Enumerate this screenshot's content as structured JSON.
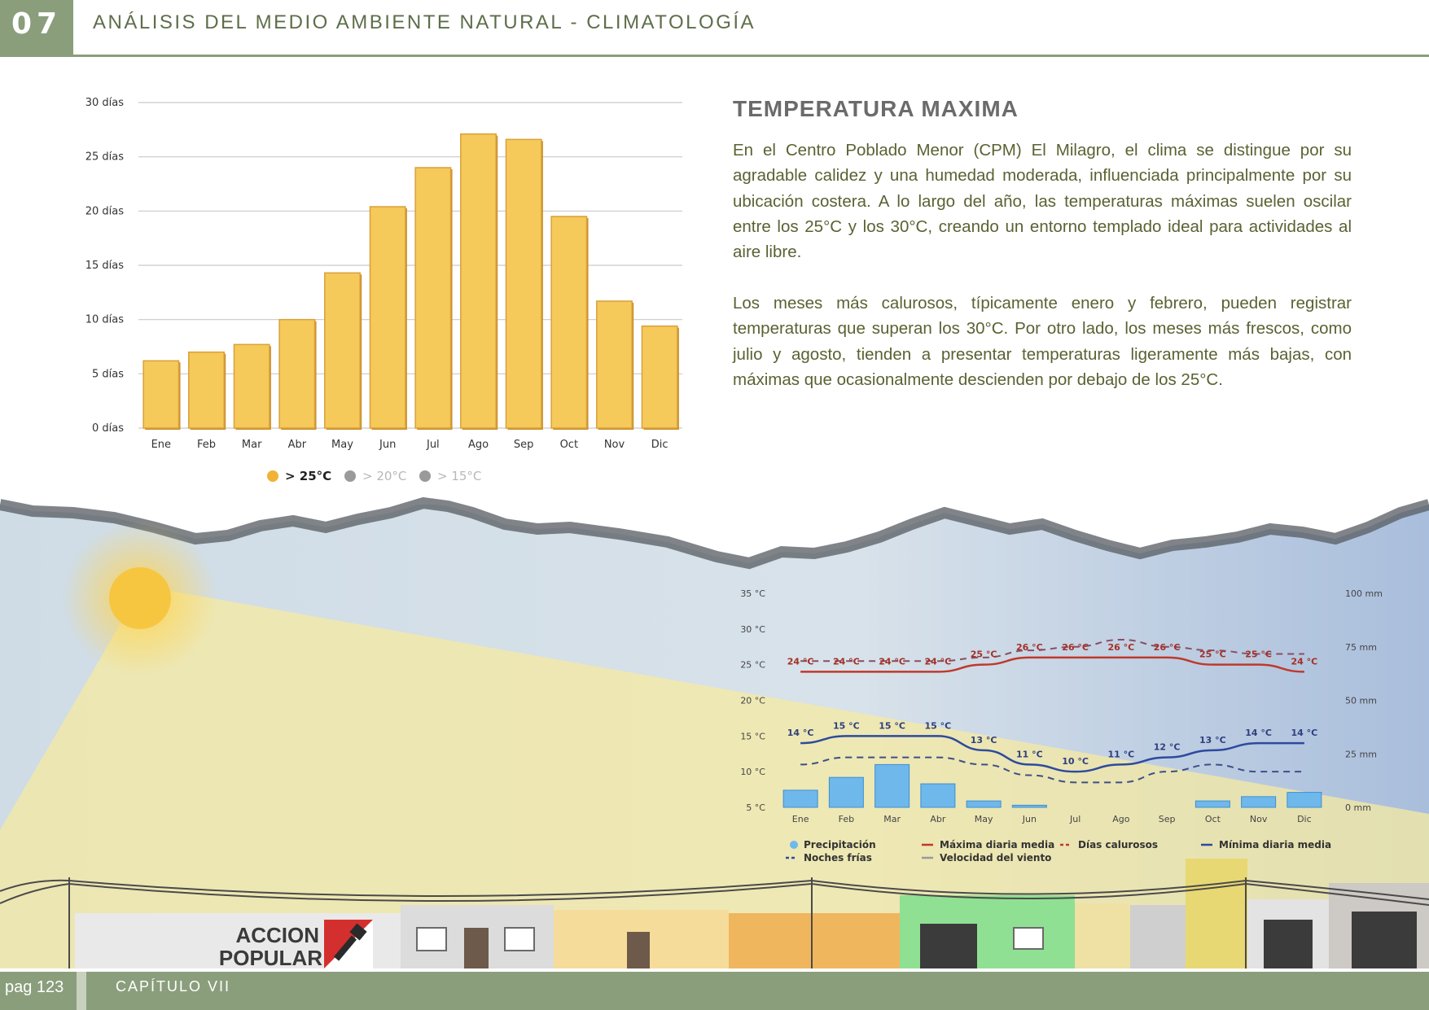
{
  "header": {
    "chapter_number": "07",
    "title": "ANÁLISIS DEL MEDIO AMBIENTE NATURAL - CLIMATOLOGÍA"
  },
  "section": {
    "title": "TEMPERATURA MAXIMA",
    "paragraphs": [
      "En el Centro Poblado Menor (CPM) El Milagro, el clima se distingue por su agradable calidez y una humedad moderada, influenciada principalmente por su ubicación costera. A lo largo del año, las temperaturas máximas suelen oscilar entre los 25°C y los 30°C, creando un entorno templado ideal para actividades al aire libre.",
      "Los meses más calurosos, típicamente enero y febrero, pueden registrar temperaturas que superan los 30°C. Por otro lado, los meses más frescos, como julio y agosto, tienden a presentar temperaturas ligeramente más bajas, con máximas que ocasionalmente descienden por debajo de los 25°C."
    ]
  },
  "footer": {
    "page": "pag 123",
    "chapter": "CAPÍTULO VII"
  },
  "logo_text": "ACCION POPULAR",
  "colors": {
    "accent": "#8a9e7c",
    "bar": "#f5c95a",
    "max_line": "#c0392b",
    "min_line": "#2e4a9e",
    "precip": "#6fb8ec"
  },
  "chart_data": [
    {
      "type": "bar",
      "categories": [
        "Ene",
        "Feb",
        "Mar",
        "Abr",
        "May",
        "Jun",
        "Jul",
        "Ago",
        "Sep",
        "Oct",
        "Nov",
        "Dic"
      ],
      "series": [
        {
          "name": "> 25°C",
          "values": [
            6.2,
            7,
            7.7,
            10,
            14.3,
            20.4,
            24,
            27.1,
            26.6,
            19.5,
            11.7,
            9.4
          ]
        }
      ],
      "y_ticks": [
        "0 días",
        "5 días",
        "10 días",
        "15 días",
        "20 días",
        "25 días",
        "30 días"
      ],
      "ylim": [
        0,
        30
      ],
      "legend": [
        "> 25°C",
        "> 20°C",
        "> 15°C"
      ],
      "legend_placement": "bottom",
      "grid": true
    },
    {
      "type": "line",
      "categories": [
        "Ene",
        "Feb",
        "Mar",
        "Abr",
        "May",
        "Jun",
        "Jul",
        "Ago",
        "Sep",
        "Oct",
        "Nov",
        "Dic"
      ],
      "series": [
        {
          "name": "Máxima diaria media",
          "values": [
            24,
            24,
            24,
            24,
            25,
            26,
            26,
            26,
            26,
            25,
            25,
            24
          ]
        },
        {
          "name": "Mínima diaria media",
          "values": [
            14,
            15,
            15,
            15,
            13,
            11,
            10,
            11,
            12,
            13,
            14,
            14
          ]
        },
        {
          "name": "Días calurosos",
          "values": [
            25.5,
            25.5,
            25.5,
            25.5,
            26,
            27,
            27.5,
            28.5,
            27.5,
            27,
            26.5,
            26.5
          ]
        },
        {
          "name": "Noches frías",
          "values": [
            11,
            12,
            12,
            12,
            11,
            9.5,
            8.5,
            8.5,
            10,
            11,
            10,
            10
          ]
        },
        {
          "name": "Precipitación",
          "values": [
            8,
            14,
            20,
            11,
            3,
            1,
            0,
            0,
            0,
            3,
            5,
            7
          ],
          "unit": "mm"
        }
      ],
      "max_labels": [
        "24 °C",
        "24 °C",
        "24 °C",
        "24 °C",
        "25 °C",
        "26 °C",
        "26 °C",
        "26 °C",
        "26 °C",
        "25 °C",
        "25 °C",
        "24 °C"
      ],
      "min_labels": [
        "14 °C",
        "15 °C",
        "15 °C",
        "15 °C",
        "13 °C",
        "11 °C",
        "10 °C",
        "11 °C",
        "12 °C",
        "13 °C",
        "14 °C",
        "14 °C"
      ],
      "y_left_ticks": [
        "5 °C",
        "10 °C",
        "15 °C",
        "20 °C",
        "25 °C",
        "30 °C",
        "35 °C"
      ],
      "y_right_ticks": [
        "0 mm",
        "25 mm",
        "50 mm",
        "75 mm",
        "100 mm"
      ],
      "y_left_lim": [
        5,
        35
      ],
      "y_right_lim": [
        0,
        100
      ],
      "legend": [
        "Precipitación",
        "Máxima diaria media",
        "Días calurosos",
        "Mínima diaria media",
        "Noches frías",
        "Velocidad del viento"
      ],
      "legend_placement": "bottom"
    }
  ]
}
